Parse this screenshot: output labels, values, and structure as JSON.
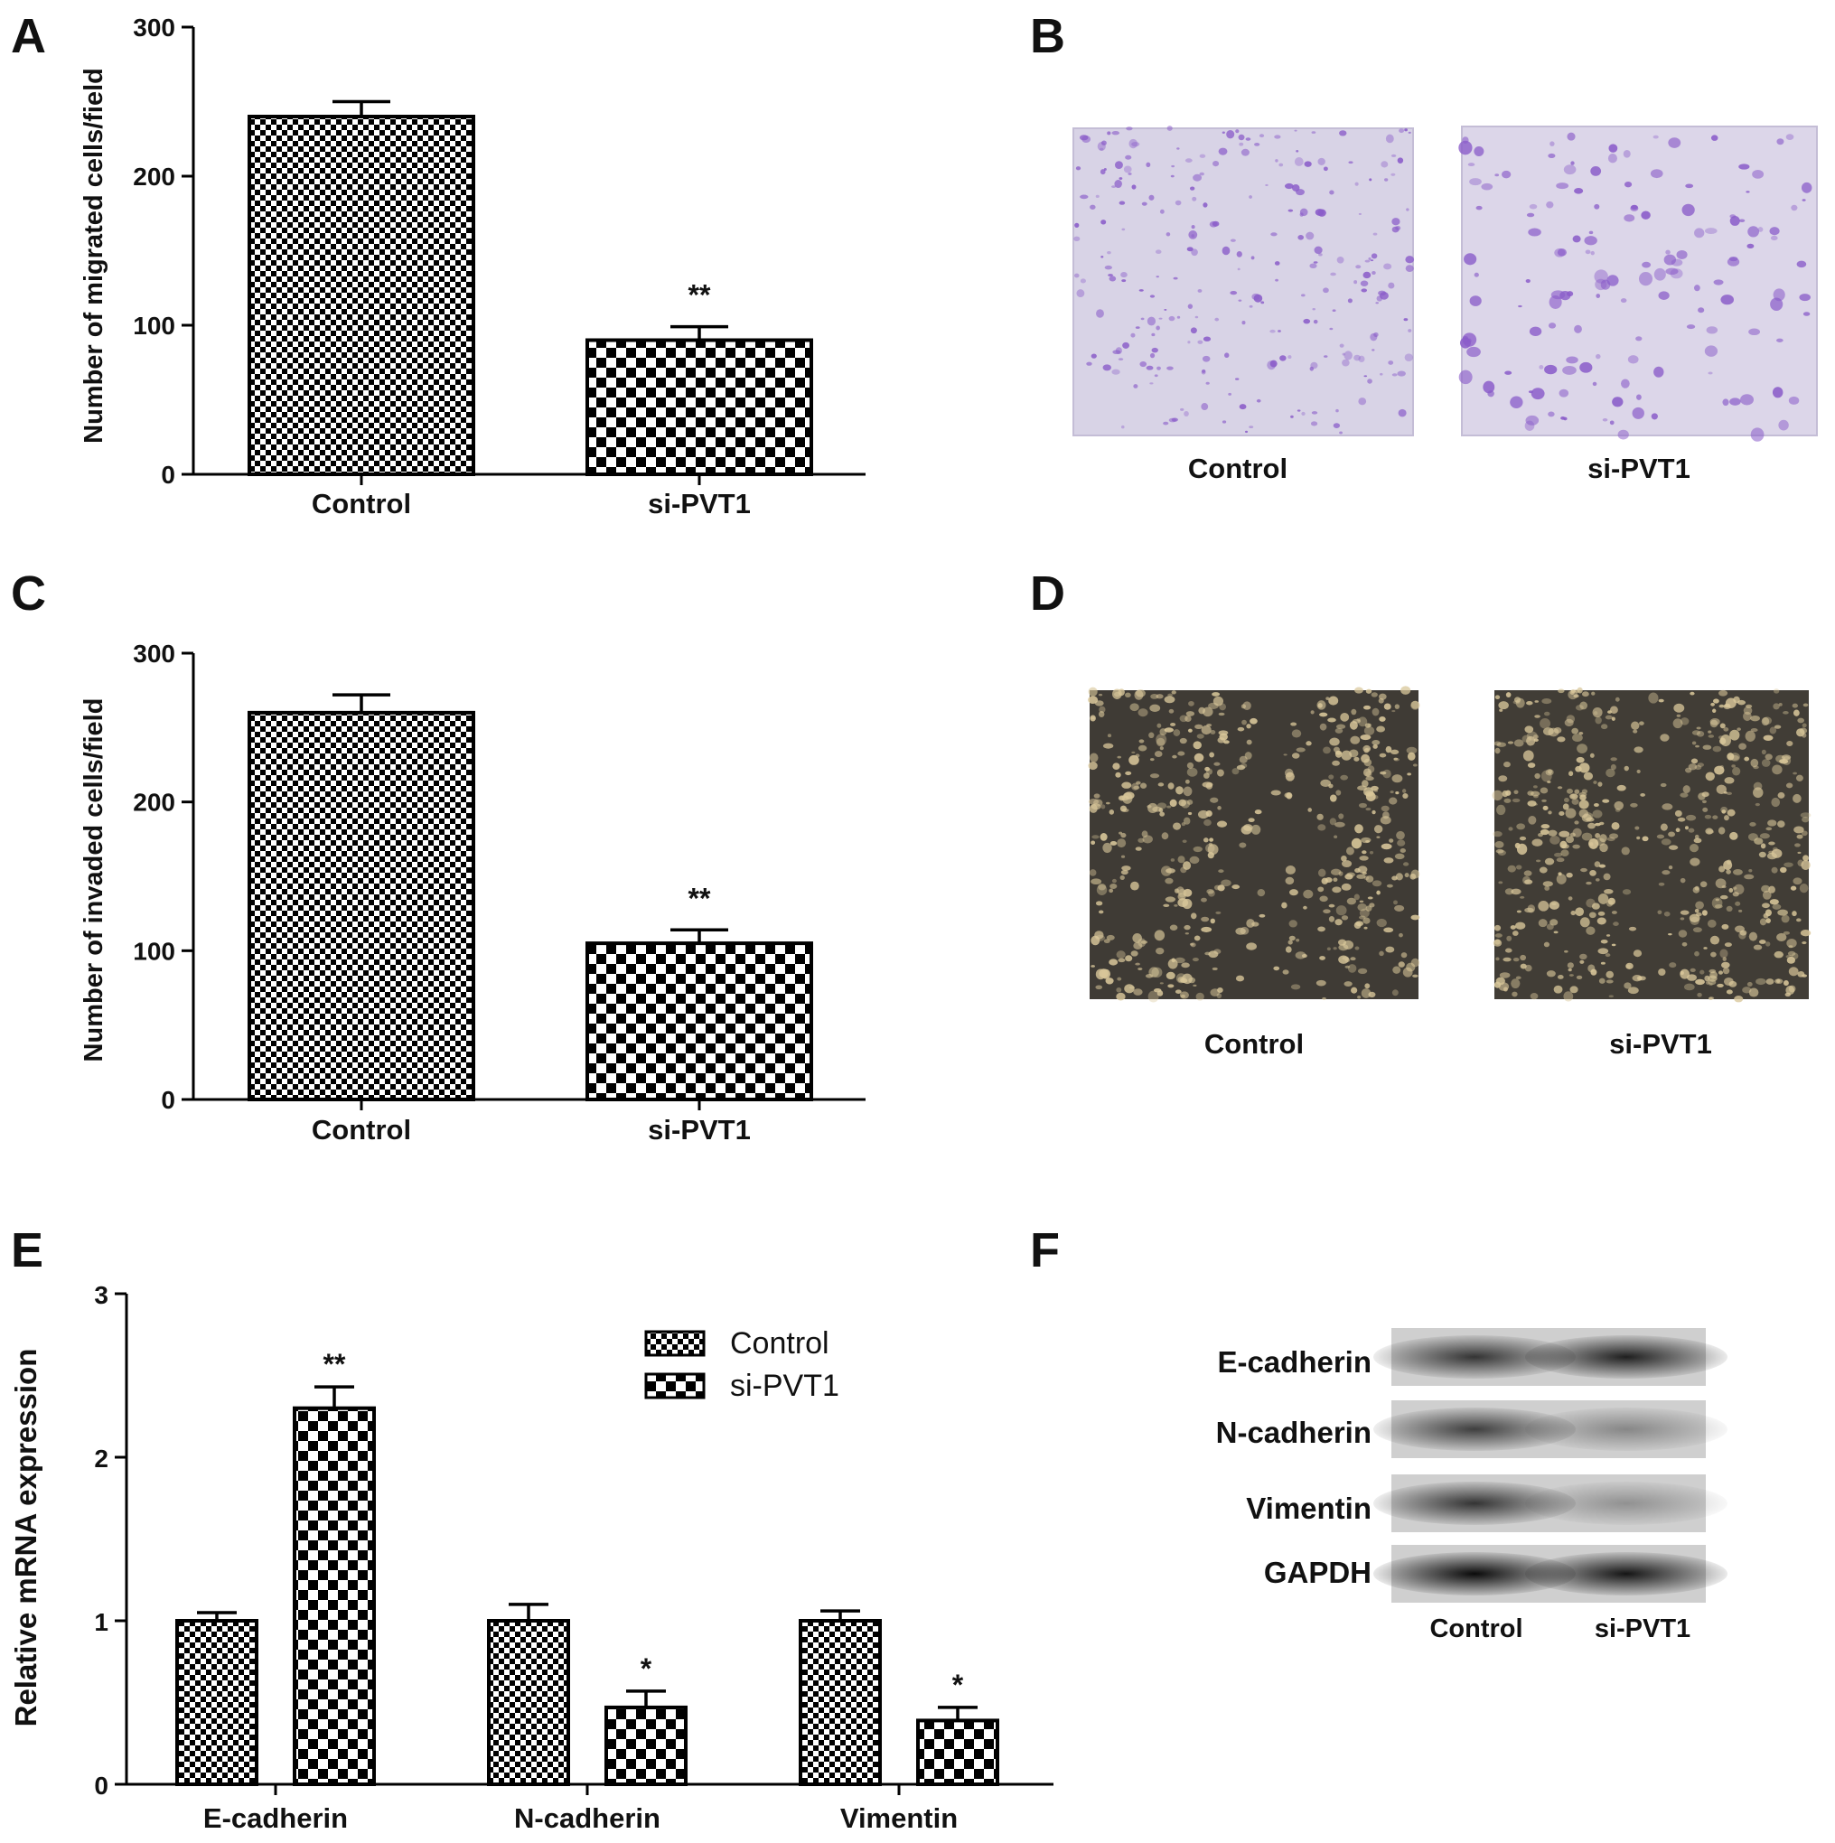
{
  "panels": {
    "A": "A",
    "B": "B",
    "C": "C",
    "D": "D",
    "E": "E",
    "F": "F"
  },
  "chart_data": [
    {
      "id": "A",
      "type": "bar",
      "categories": [
        "Control",
        "si-PVT1"
      ],
      "values": [
        240,
        90
      ],
      "errors": [
        10,
        9
      ],
      "significance": [
        "",
        "**"
      ],
      "ylabel": "Number of migrated cells/field",
      "ylim": [
        0,
        300
      ],
      "yticks": [
        0,
        100,
        200,
        300
      ],
      "patterns": [
        "fine-check",
        "coarse-check"
      ]
    },
    {
      "id": "C",
      "type": "bar",
      "categories": [
        "Control",
        "si-PVT1"
      ],
      "values": [
        260,
        105
      ],
      "errors": [
        12,
        9
      ],
      "significance": [
        "",
        "**"
      ],
      "ylabel": "Number of invaded cells/field",
      "ylim": [
        0,
        300
      ],
      "yticks": [
        0,
        100,
        200,
        300
      ],
      "patterns": [
        "fine-check",
        "coarse-check"
      ]
    },
    {
      "id": "E",
      "type": "bar",
      "categories": [
        "E-cadherin",
        "N-cadherin",
        "Vimentin"
      ],
      "series": [
        {
          "name": "Control",
          "values": [
            1.0,
            1.0,
            1.0
          ],
          "errors": [
            0.05,
            0.1,
            0.06
          ],
          "significance": [
            "",
            "",
            ""
          ]
        },
        {
          "name": "si-PVT1",
          "values": [
            2.3,
            0.47,
            0.39
          ],
          "errors": [
            0.13,
            0.1,
            0.08
          ],
          "significance": [
            "**",
            "*",
            "*"
          ]
        }
      ],
      "ylabel": "Relative mRNA expression",
      "ylim": [
        0,
        3
      ],
      "yticks": [
        0,
        1,
        2,
        3
      ],
      "legend": "top-right"
    }
  ],
  "micrographs": {
    "B": {
      "labels": [
        "Control",
        "si-PVT1"
      ],
      "stain_color": "#8a5cc9",
      "background": "#d8d3e6"
    },
    "D": {
      "labels": [
        "Control",
        "si-PVT1"
      ],
      "cell_color": "#d9c79a",
      "background": "#3f3b35"
    }
  },
  "blot": {
    "rows": [
      "E-cadherin",
      "N-cadherin",
      "Vimentin",
      "GAPDH"
    ],
    "lanes": [
      "Control",
      "si-PVT1"
    ],
    "band_intensity": [
      [
        0.75,
        0.85
      ],
      [
        0.7,
        0.35
      ],
      [
        0.75,
        0.3
      ],
      [
        0.95,
        0.9
      ]
    ]
  }
}
